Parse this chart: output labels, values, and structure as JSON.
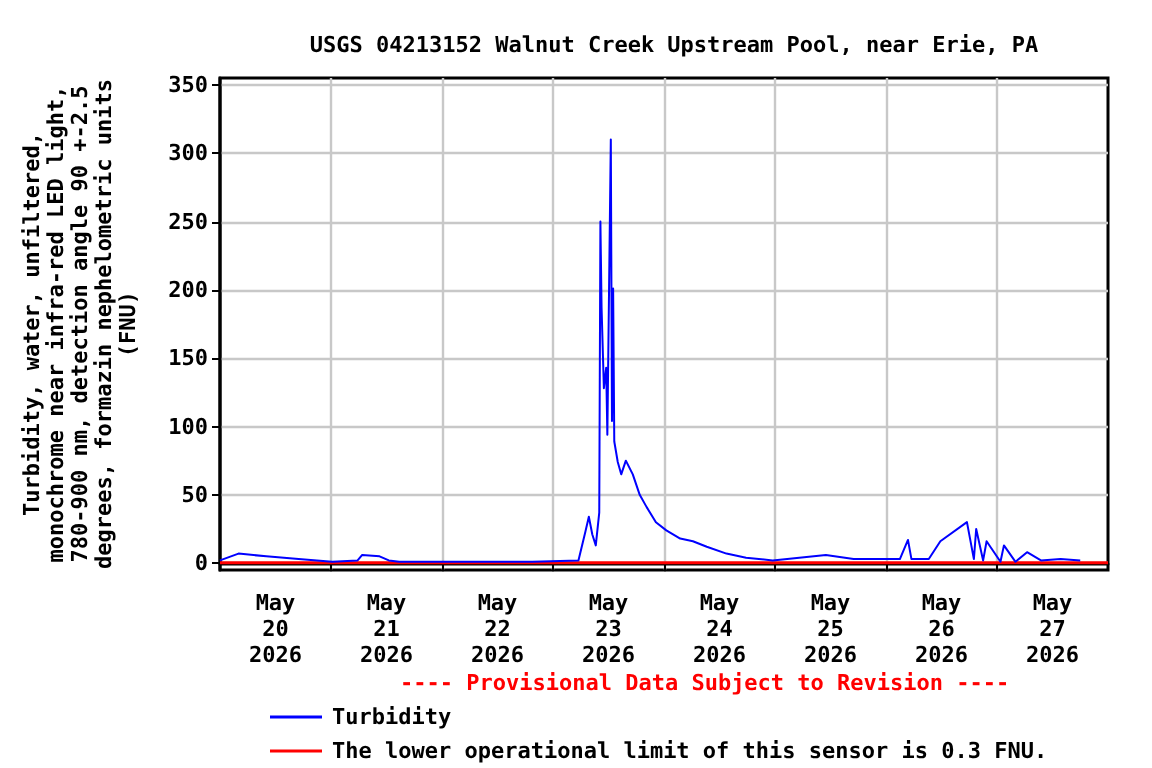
{
  "chart_data": {
    "type": "line",
    "title": "USGS 04213152 Walnut Creek Upstream Pool, near Erie, PA",
    "ylabel": "Turbidity, water, unfiltered,\nmonochrome near infra-red LED light,\n780-900 nm, detection angle 90 +-2.5\ndegrees, formazin nephelometric units\n(FNU)",
    "annotations": [
      "---- Provisional Data Subject to Revision ----"
    ],
    "x": [
      "2026-05-20T00:00",
      "2026-05-20T04:00",
      "2026-05-20T10:00",
      "2026-05-20T17:00",
      "2026-05-21T00:15",
      "2026-05-21T05:45",
      "2026-05-21T06:45",
      "2026-05-21T10:30",
      "2026-05-21T12:30",
      "2026-05-21T14:45",
      "2026-05-22T19:30",
      "2026-05-23T05:30",
      "2026-05-23T07:00",
      "2026-05-23T07:45",
      "2026-05-23T08:30",
      "2026-05-23T09:15",
      "2026-05-23T10:00",
      "2026-05-23T10:15",
      "2026-05-23T10:30",
      "2026-05-23T11:00",
      "2026-05-23T11:30",
      "2026-05-23T11:45",
      "2026-05-23T12:30",
      "2026-05-23T12:45",
      "2026-05-23T13:00",
      "2026-05-23T13:15",
      "2026-05-23T14:00",
      "2026-05-23T14:45",
      "2026-05-23T15:45",
      "2026-05-23T17:15",
      "2026-05-23T18:45",
      "2026-05-23T20:15",
      "2026-05-23T22:15",
      "2026-05-24T00:30",
      "2026-05-24T03:30",
      "2026-05-24T06:15",
      "2026-05-24T09:15",
      "2026-05-24T13:30",
      "2026-05-24T17:45",
      "2026-05-24T23:30",
      "2026-05-25T11:00",
      "2026-05-25T17:00",
      "2026-05-26T03:00",
      "2026-05-26T04:45",
      "2026-05-26T05:30",
      "2026-05-26T09:15",
      "2026-05-26T11:45",
      "2026-05-26T17:30",
      "2026-05-26T19:00",
      "2026-05-26T19:30",
      "2026-05-26T21:00",
      "2026-05-26T21:45",
      "2026-05-27T00:45",
      "2026-05-27T01:30",
      "2026-05-27T04:00",
      "2026-05-27T06:30",
      "2026-05-27T09:30",
      "2026-05-27T13:45",
      "2026-05-27T18:00"
    ],
    "series": [
      {
        "name": "Turbidity",
        "color": "#0000ff",
        "values": [
          2,
          7,
          5,
          3,
          1,
          2,
          6,
          5,
          2,
          1,
          1,
          2,
          23,
          34,
          21,
          13,
          37,
          250,
          187,
          128,
          143,
          94,
          310,
          104,
          201,
          89,
          74,
          65,
          75,
          65,
          50,
          41,
          30,
          24,
          18,
          16,
          12,
          7,
          4,
          2,
          6,
          3,
          3,
          17,
          3,
          3,
          16,
          30,
          3,
          25,
          2,
          16,
          1,
          13,
          1,
          8,
          2,
          3,
          2
        ]
      }
    ],
    "ref_lines": [
      {
        "axis": "y",
        "value": 0.3,
        "label": "The lower operational limit of this sensor is 0.3 FNU.",
        "color": "#ff0000"
      }
    ],
    "xlim": [
      "2026-05-20",
      "2026-05-28"
    ],
    "xticks": [
      {
        "value": "2026-05-20T12:00",
        "label": "May\n20\n2026"
      },
      {
        "value": "2026-05-21T12:00",
        "label": "May\n21\n2026"
      },
      {
        "value": "2026-05-22T12:00",
        "label": "May\n22\n2026"
      },
      {
        "value": "2026-05-23T12:00",
        "label": "May\n23\n2026"
      },
      {
        "value": "2026-05-24T12:00",
        "label": "May\n24\n2026"
      },
      {
        "value": "2026-05-25T12:00",
        "label": "May\n25\n2026"
      },
      {
        "value": "2026-05-26T12:00",
        "label": "May\n26\n2026"
      },
      {
        "value": "2026-05-27T12:00",
        "label": "May\n27\n2026"
      },
      {
        "value": "2026-05-21",
        "label": null
      },
      {
        "value": "2026-05-22",
        "label": null
      },
      {
        "value": "2026-05-23",
        "label": null
      },
      {
        "value": "2026-05-24",
        "label": null
      },
      {
        "value": "2026-05-25",
        "label": null
      },
      {
        "value": "2026-05-26",
        "label": null
      },
      {
        "value": "2026-05-27",
        "label": null
      }
    ],
    "ylim": [
      -5,
      355
    ],
    "yticks": [
      0,
      50,
      100,
      150,
      200,
      250,
      300,
      350
    ],
    "grid": true,
    "legend": "bottom",
    "marker": "none",
    "line_style": "solid"
  }
}
